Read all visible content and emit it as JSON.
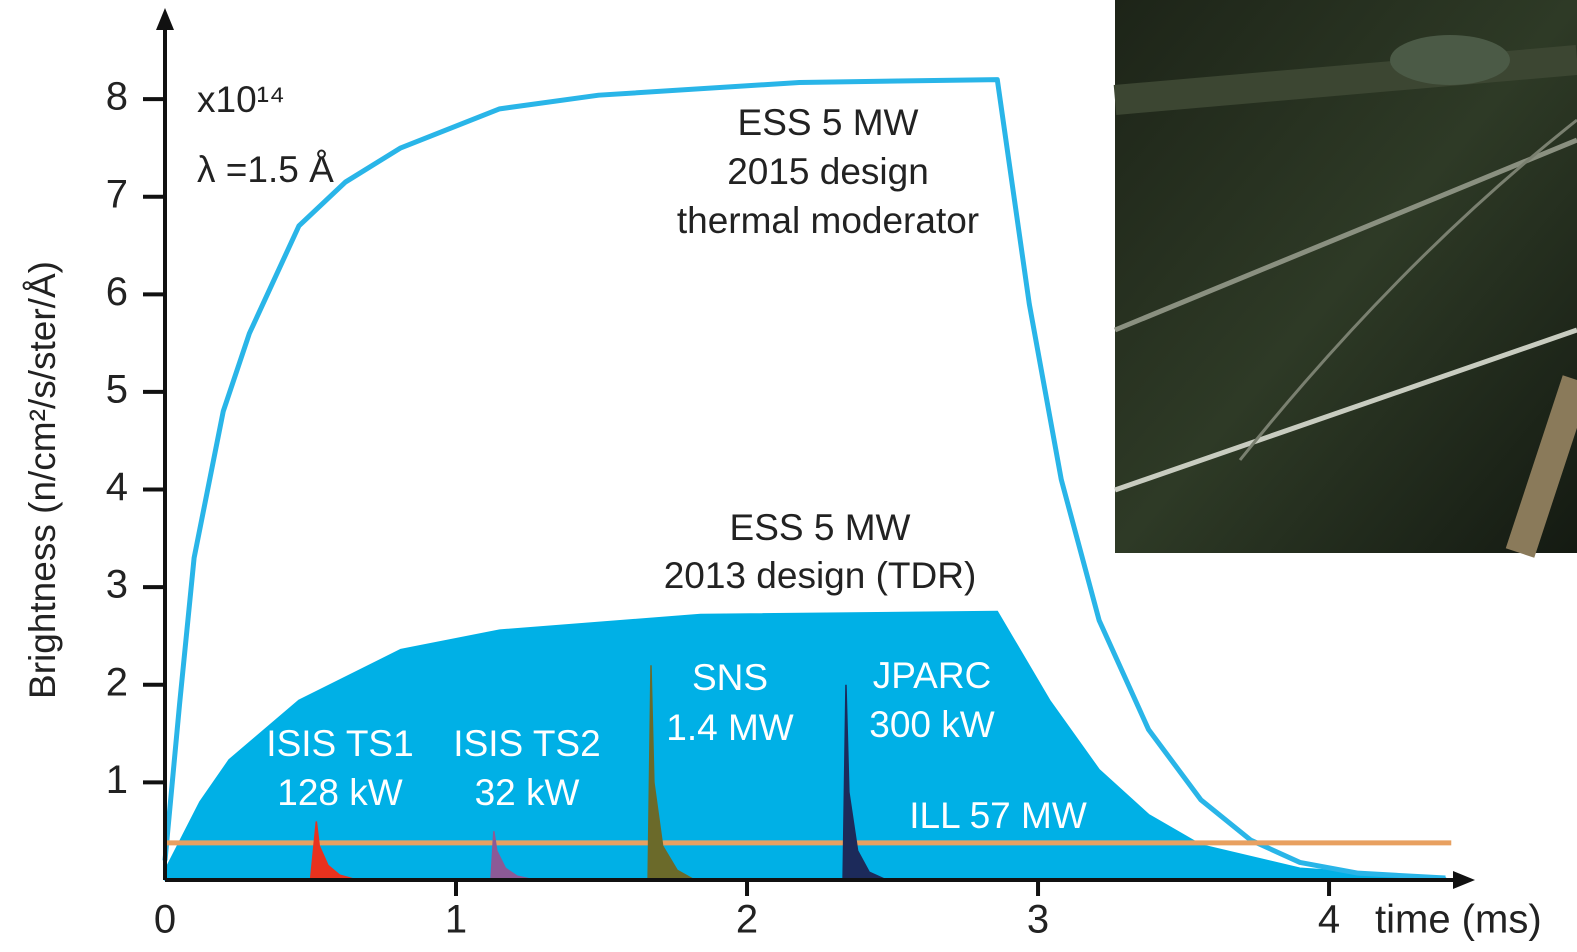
{
  "chart_data": {
    "type": "line",
    "ylabel": "Brightness (n/cm²/s/ster/Å)",
    "xlabel": "time (ms)",
    "annotations": [
      "x10¹⁴",
      "λ =1.5 Å"
    ],
    "xlim": [
      0,
      4.45
    ],
    "ylim": [
      0,
      8.8
    ],
    "xticks": [
      0,
      1,
      2,
      3,
      4
    ],
    "yticks": [
      1,
      2,
      3,
      4,
      5,
      6,
      7,
      8
    ],
    "series": [
      {
        "name": [
          "ESS 5 MW",
          "2013 design (TDR)"
        ],
        "style": "area",
        "color": "#00b0e6",
        "x": [
          0,
          0.12,
          0.22,
          0.46,
          0.81,
          1.15,
          1.84,
          2.86,
          3.04,
          3.21,
          3.38,
          3.56,
          3.9,
          4.4
        ],
        "values": [
          0.1,
          0.8,
          1.23,
          1.84,
          2.36,
          2.56,
          2.72,
          2.75,
          1.84,
          1.13,
          0.67,
          0.36,
          0.12,
          0.02
        ]
      },
      {
        "name": [
          "ESS 5 MW",
          "2015 design",
          "thermal moderator"
        ],
        "style": "line",
        "color": "#29b5e8",
        "x": [
          0,
          0.05,
          0.1,
          0.2,
          0.29,
          0.46,
          0.62,
          0.81,
          1.15,
          1.49,
          2.18,
          2.86,
          2.97,
          3.08,
          3.21,
          3.38,
          3.56,
          3.73,
          3.9,
          4.1,
          4.4
        ],
        "values": [
          0.2,
          1.8,
          3.3,
          4.8,
          5.6,
          6.7,
          7.15,
          7.5,
          7.9,
          8.04,
          8.17,
          8.2,
          5.9,
          4.1,
          2.66,
          1.54,
          0.82,
          0.41,
          0.18,
          0.07,
          0.02
        ]
      },
      {
        "name": [
          "ILL 57 MW"
        ],
        "style": "line",
        "color": "#e8a060",
        "x": [
          0,
          4.42
        ],
        "values": [
          0.38,
          0.38
        ]
      },
      {
        "name": [
          "ISIS TS1",
          "128 kW"
        ],
        "style": "area",
        "color": "#e8321e",
        "x": [
          0.5,
          0.52,
          0.53,
          0.56,
          0.6,
          0.66
        ],
        "values": [
          0,
          0.6,
          0.35,
          0.15,
          0.05,
          0
        ]
      },
      {
        "name": [
          "ISIS TS2",
          "32 kW"
        ],
        "style": "area",
        "color": "#8c5a96",
        "x": [
          1.12,
          1.13,
          1.14,
          1.17,
          1.21,
          1.27
        ],
        "values": [
          0,
          0.5,
          0.3,
          0.12,
          0.04,
          0
        ]
      },
      {
        "name": [
          "SNS",
          "1.4 MW"
        ],
        "style": "area",
        "color": "#6b6a2a",
        "x": [
          1.66,
          1.67,
          1.68,
          1.71,
          1.76,
          1.82
        ],
        "values": [
          0,
          2.2,
          1.0,
          0.35,
          0.1,
          0
        ]
      },
      {
        "name": [
          "JPARC",
          "300 kW"
        ],
        "style": "area",
        "color": "#1c2a5a",
        "x": [
          2.33,
          2.34,
          2.35,
          2.38,
          2.42,
          2.48
        ],
        "values": [
          0,
          2.0,
          0.9,
          0.3,
          0.08,
          0
        ]
      }
    ]
  }
}
